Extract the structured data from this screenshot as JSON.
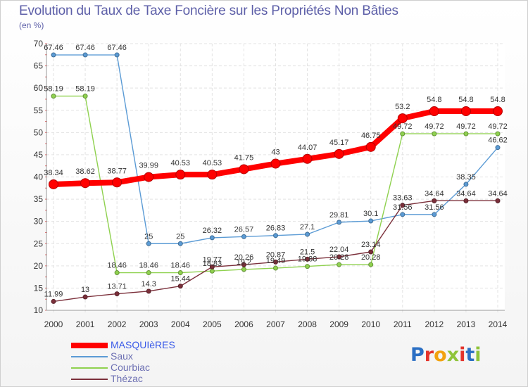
{
  "chart_data": {
    "type": "line",
    "title": "Evolution du Taux de Taxe Foncière sur les Propriétés Non Bâties",
    "unit_label": "(en %)",
    "xlabel": "",
    "ylabel": "",
    "ylim": [
      10,
      70
    ],
    "yticks": [
      10,
      15,
      20,
      25,
      30,
      35,
      40,
      45,
      50,
      55,
      60,
      65,
      70
    ],
    "grid": true,
    "x": [
      "2000",
      "2001",
      "2002",
      "2003",
      "2004",
      "2005",
      "2006",
      "2007",
      "2008",
      "2009",
      "2010",
      "2011",
      "2012",
      "2013",
      "2014"
    ],
    "series": [
      {
        "name": "MASQUIèRES",
        "color": "#ff0000",
        "values": [
          38.34,
          38.62,
          38.77,
          39.99,
          40.53,
          40.53,
          41.75,
          43,
          44.07,
          45.17,
          46.75,
          53.2,
          54.8,
          54.8,
          54.8
        ],
        "labels": [
          "38.34",
          "38.62",
          "38.77",
          "39.99",
          "40.53",
          "40.53",
          "41.75",
          "43",
          "44.07",
          "45.17",
          "46.75",
          "53.2",
          "54.8",
          "54.8",
          "54.8"
        ]
      },
      {
        "name": "Saux",
        "color": "#5b9bd5",
        "values": [
          67.46,
          67.46,
          67.46,
          25,
          25,
          26.32,
          26.57,
          26.83,
          27.1,
          29.81,
          30.1,
          31.56,
          31.56,
          38.35,
          46.62
        ],
        "labels": [
          "67.46",
          "67.46",
          "67.46",
          "25",
          "25",
          "26.32",
          "26.57",
          "26.83",
          "27.1",
          "29.81",
          "30.1",
          "31.56",
          "31.56",
          "38.35",
          "46.62"
        ]
      },
      {
        "name": "Courbiac",
        "color": "#8fd14f",
        "values": [
          58.19,
          58.19,
          18.46,
          18.46,
          18.46,
          18.83,
          19.2,
          19.49,
          19.88,
          20.28,
          20.28,
          49.72,
          49.72,
          49.72,
          49.72
        ],
        "labels": [
          "58.19",
          "58.19",
          "18.46",
          "18.46",
          "18.46",
          "18.83",
          "19.2",
          "19.49",
          "19.88",
          "20.28",
          "20.28",
          "49.72",
          "49.72",
          "49.72",
          "49.72"
        ]
      },
      {
        "name": "Thézac",
        "color": "#7b2f3a",
        "values": [
          11.99,
          13,
          13.71,
          14.3,
          15.44,
          19.77,
          20.26,
          20.87,
          21.5,
          22.04,
          23.14,
          33.63,
          34.64,
          34.64,
          34.64
        ],
        "labels": [
          "11.99",
          "13",
          "13.71",
          "14.3",
          "15.44",
          "19.77",
          "20.26",
          "20.87",
          "21.5",
          "22.04",
          "23.14",
          "33.63",
          "34.64",
          "34.64",
          "34.64"
        ]
      }
    ],
    "legend": "bottom-left"
  },
  "logo": {
    "letters": [
      "P",
      "r",
      "o",
      "x",
      "i",
      "t",
      "i"
    ],
    "colors": [
      "#2b6fc4",
      "#e4332b",
      "#f2a20e",
      "#8fc43a",
      "#e4332b",
      "#2b6fc4",
      "#8fc43a"
    ]
  }
}
